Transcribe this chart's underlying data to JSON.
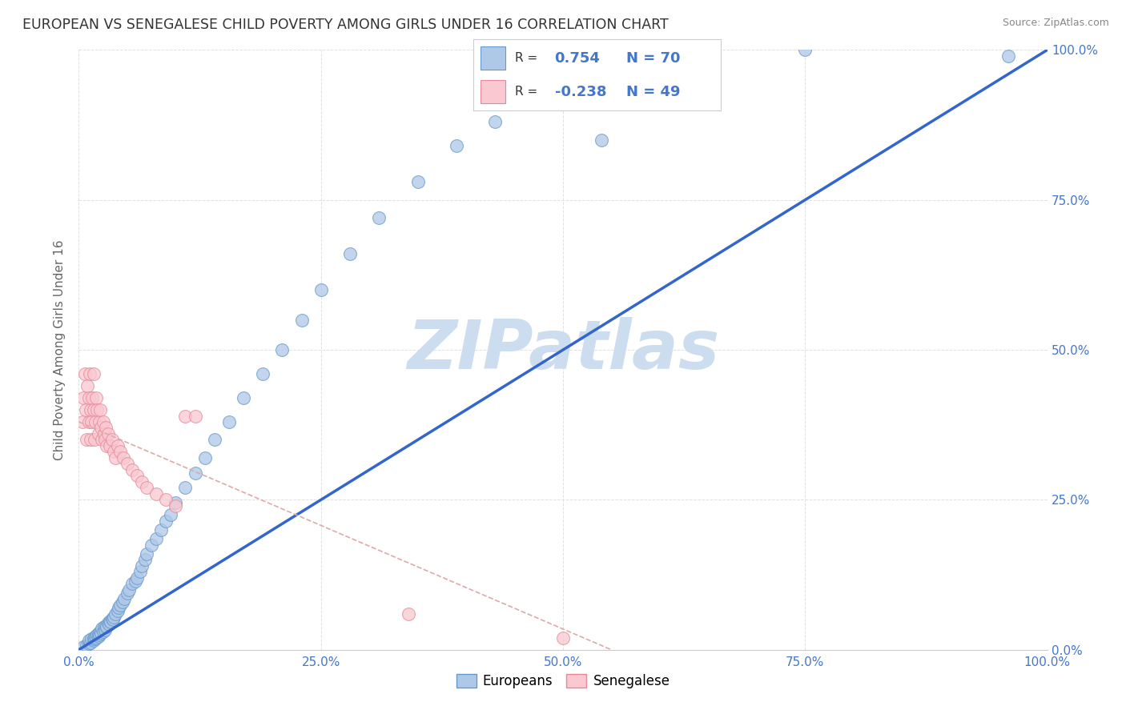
{
  "title": "EUROPEAN VS SENEGALESE CHILD POVERTY AMONG GIRLS UNDER 16 CORRELATION CHART",
  "source": "Source: ZipAtlas.com",
  "ylabel": "Child Poverty Among Girls Under 16",
  "background_color": "#ffffff",
  "grid_color": "#dddddd",
  "blue_dot_face": "#aec8e8",
  "blue_dot_edge": "#6699cc",
  "pink_dot_face": "#f9c8d0",
  "pink_dot_edge": "#e88899",
  "trend_blue_color": "#3366cc",
  "trend_pink_color": "#ddaaaa",
  "tick_color": "#4477cc",
  "axis_label_color": "#666666",
  "title_color": "#333333",
  "source_color": "#888888",
  "watermark_color": "#ccddf0",
  "legend_text_color": "#4477cc",
  "legend_r_color": "#333333",
  "R_blue": 0.754,
  "N_blue": 70,
  "R_pink": -0.238,
  "N_pink": 49,
  "xlim": [
    0.0,
    1.0
  ],
  "ylim": [
    0.0,
    1.0
  ],
  "xticks": [
    0.0,
    0.25,
    0.5,
    0.75,
    1.0
  ],
  "yticks": [
    0.0,
    0.25,
    0.5,
    0.75,
    1.0
  ],
  "xticklabels": [
    "0.0%",
    "25.0%",
    "50.0%",
    "75.0%",
    "100.0%"
  ],
  "yticklabels": [
    "0.0%",
    "25.0%",
    "50.0%",
    "75.0%",
    "100.0%"
  ],
  "blue_scatter_x": [
    0.005,
    0.008,
    0.01,
    0.01,
    0.012,
    0.013,
    0.015,
    0.015,
    0.016,
    0.017,
    0.018,
    0.019,
    0.02,
    0.02,
    0.021,
    0.022,
    0.023,
    0.024,
    0.025,
    0.026,
    0.027,
    0.028,
    0.029,
    0.03,
    0.031,
    0.032,
    0.033,
    0.034,
    0.035,
    0.036,
    0.038,
    0.04,
    0.041,
    0.043,
    0.045,
    0.047,
    0.05,
    0.052,
    0.055,
    0.058,
    0.06,
    0.063,
    0.065,
    0.068,
    0.07,
    0.075,
    0.08,
    0.085,
    0.09,
    0.095,
    0.1,
    0.11,
    0.12,
    0.13,
    0.14,
    0.155,
    0.17,
    0.19,
    0.21,
    0.23,
    0.25,
    0.28,
    0.31,
    0.35,
    0.39,
    0.43,
    0.48,
    0.54,
    0.75,
    0.96
  ],
  "blue_scatter_y": [
    0.005,
    0.008,
    0.01,
    0.015,
    0.012,
    0.018,
    0.015,
    0.02,
    0.018,
    0.022,
    0.02,
    0.025,
    0.022,
    0.028,
    0.025,
    0.03,
    0.028,
    0.035,
    0.03,
    0.038,
    0.033,
    0.04,
    0.038,
    0.045,
    0.042,
    0.048,
    0.046,
    0.052,
    0.05,
    0.055,
    0.06,
    0.065,
    0.07,
    0.075,
    0.08,
    0.085,
    0.095,
    0.1,
    0.11,
    0.115,
    0.12,
    0.13,
    0.14,
    0.15,
    0.16,
    0.175,
    0.185,
    0.2,
    0.215,
    0.225,
    0.245,
    0.27,
    0.295,
    0.32,
    0.35,
    0.38,
    0.42,
    0.46,
    0.5,
    0.55,
    0.6,
    0.66,
    0.72,
    0.78,
    0.84,
    0.88,
    0.91,
    0.85,
    1.0,
    0.99
  ],
  "pink_scatter_x": [
    0.004,
    0.005,
    0.006,
    0.007,
    0.008,
    0.009,
    0.01,
    0.01,
    0.011,
    0.012,
    0.012,
    0.013,
    0.014,
    0.015,
    0.015,
    0.016,
    0.017,
    0.018,
    0.019,
    0.02,
    0.021,
    0.022,
    0.023,
    0.024,
    0.025,
    0.026,
    0.027,
    0.028,
    0.029,
    0.03,
    0.032,
    0.034,
    0.036,
    0.038,
    0.04,
    0.043,
    0.046,
    0.05,
    0.055,
    0.06,
    0.065,
    0.07,
    0.08,
    0.09,
    0.1,
    0.11,
    0.12,
    0.34,
    0.5
  ],
  "pink_scatter_y": [
    0.38,
    0.42,
    0.46,
    0.4,
    0.35,
    0.44,
    0.38,
    0.42,
    0.46,
    0.4,
    0.35,
    0.38,
    0.42,
    0.46,
    0.4,
    0.35,
    0.38,
    0.42,
    0.4,
    0.36,
    0.38,
    0.4,
    0.37,
    0.35,
    0.38,
    0.36,
    0.35,
    0.37,
    0.34,
    0.36,
    0.34,
    0.35,
    0.33,
    0.32,
    0.34,
    0.33,
    0.32,
    0.31,
    0.3,
    0.29,
    0.28,
    0.27,
    0.26,
    0.25,
    0.24,
    0.39,
    0.39,
    0.06,
    0.02
  ],
  "blue_trend_x": [
    0.0,
    1.0
  ],
  "blue_trend_y": [
    0.0,
    1.0
  ],
  "pink_trend_x": [
    0.0,
    0.55
  ],
  "pink_trend_y": [
    0.38,
    0.0
  ],
  "watermark": "ZIPatlas"
}
